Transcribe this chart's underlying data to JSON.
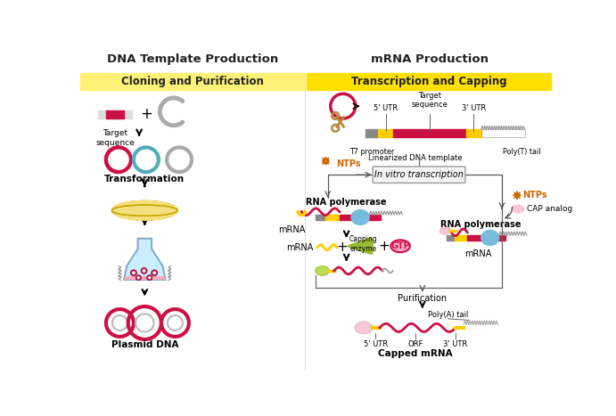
{
  "title_left": "DNA Template Production",
  "title_right": "mRNA Production",
  "subtitle_left": "Cloning and Purification",
  "subtitle_right": "Transcription and Capping",
  "bg_color": "#ffffff",
  "yellow_bright": "#FFE000",
  "yellow_light": "#FFF176",
  "red_color": "#cc1144",
  "pink_color": "#f48faf",
  "light_pink": "#f9c8d5",
  "orange_color": "#cc6600",
  "blue_color": "#77bbdd",
  "teal_color": "#55aabb",
  "green_color": "#99bb33",
  "yellow_color": "#ffcc00",
  "gray_color": "#888888",
  "light_gray": "#cccccc",
  "gold_color": "#cc9900",
  "dark_color": "#222222"
}
